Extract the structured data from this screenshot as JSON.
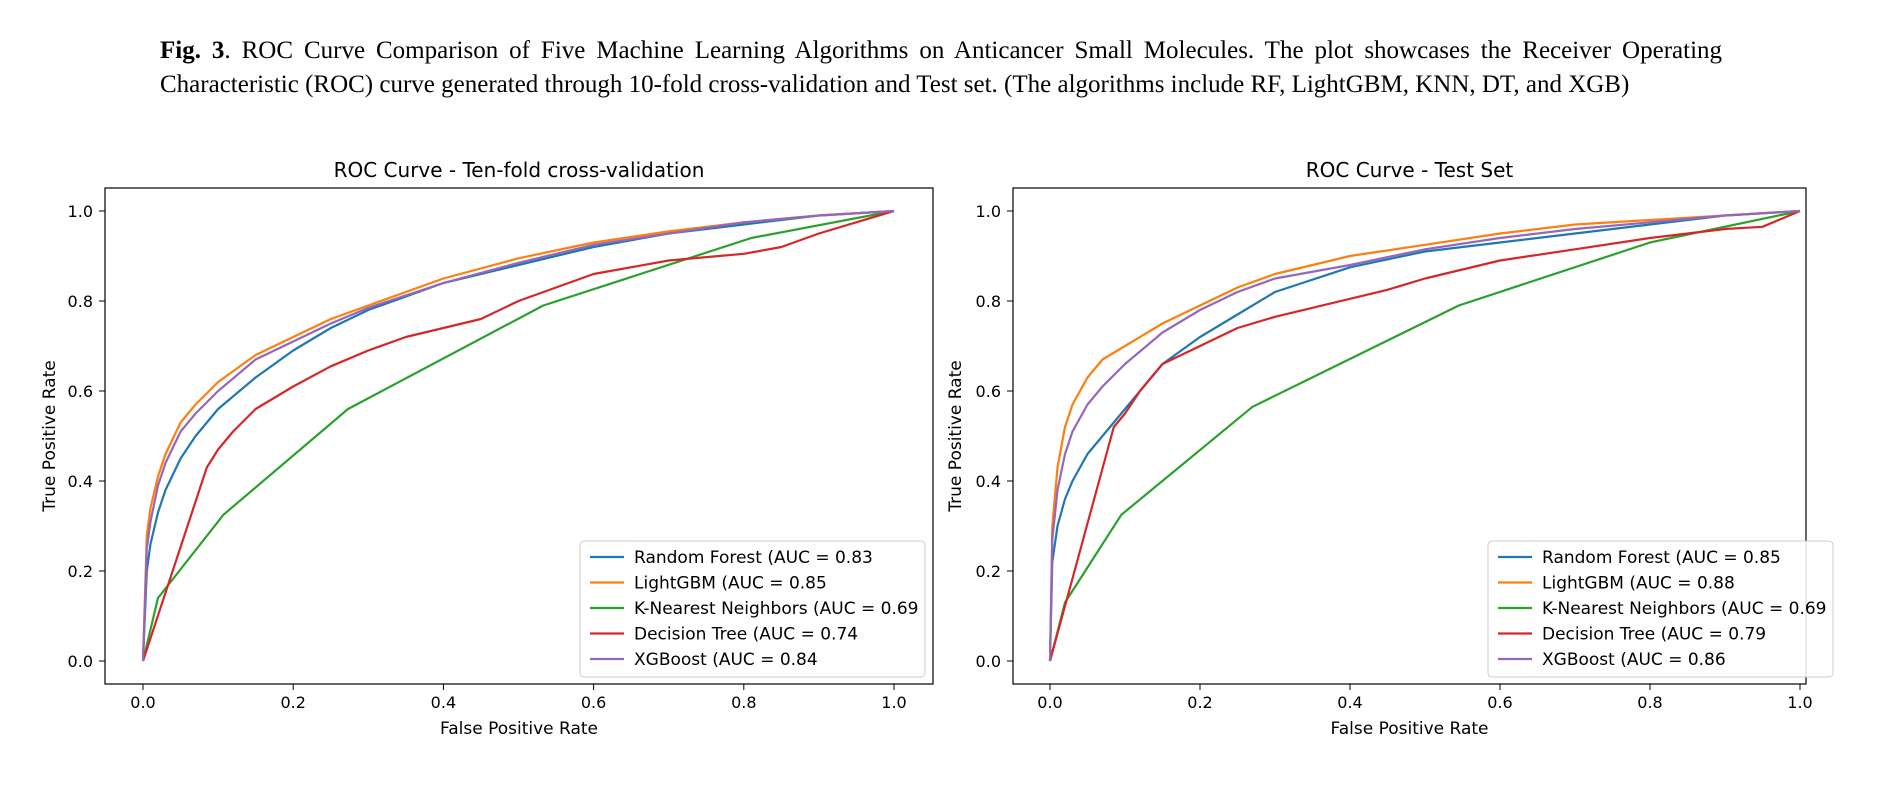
{
  "caption": {
    "label": "Fig. 3",
    "text": ". ROC Curve Comparison of Five Machine Learning Algorithms on Anticancer Small Molecules. The plot showcases the Receiver Operating Characteristic (ROC) curve generated through 10-fold cross-validation and Test set. (The algorithms include RF, LightGBM, KNN, DT, and XGB)"
  },
  "chart_data": [
    {
      "type": "line",
      "title": "ROC Curve - Ten-fold cross-validation",
      "xlabel": "False Positive Rate",
      "ylabel": "True Positive Rate",
      "xlim": [
        0,
        1
      ],
      "ylim": [
        0,
        1
      ],
      "xticks": [
        "0.0",
        "0.2",
        "0.4",
        "0.6",
        "0.8",
        "1.0"
      ],
      "yticks": [
        "0.0",
        "0.2",
        "0.4",
        "0.6",
        "0.8",
        "1.0"
      ],
      "grid": false,
      "legend_position": "lower-right",
      "series": [
        {
          "name": "Random Forest (AUC = 0.83",
          "color": "#1f77b4",
          "x": [
            0,
            0.005,
            0.01,
            0.02,
            0.03,
            0.05,
            0.07,
            0.1,
            0.15,
            0.2,
            0.25,
            0.3,
            0.4,
            0.5,
            0.6,
            0.7,
            0.8,
            0.9,
            1.0
          ],
          "y": [
            0,
            0.2,
            0.26,
            0.33,
            0.38,
            0.45,
            0.5,
            0.56,
            0.63,
            0.69,
            0.74,
            0.78,
            0.84,
            0.88,
            0.92,
            0.95,
            0.97,
            0.99,
            1.0
          ]
        },
        {
          "name": "LightGBM (AUC = 0.85",
          "color": "#ff7f0e",
          "x": [
            0,
            0.005,
            0.01,
            0.02,
            0.03,
            0.05,
            0.07,
            0.1,
            0.15,
            0.2,
            0.25,
            0.3,
            0.4,
            0.5,
            0.6,
            0.7,
            0.8,
            0.9,
            1.0
          ],
          "y": [
            0,
            0.28,
            0.34,
            0.41,
            0.46,
            0.53,
            0.57,
            0.62,
            0.68,
            0.72,
            0.76,
            0.79,
            0.85,
            0.895,
            0.93,
            0.955,
            0.975,
            0.99,
            1.0
          ]
        },
        {
          "name": "K-Nearest Neighbors (AUC = 0.69",
          "color": "#2ca02c",
          "x": [
            0,
            0.02,
            0.107,
            0.273,
            0.533,
            0.81,
            1.0
          ],
          "y": [
            0,
            0.14,
            0.325,
            0.56,
            0.79,
            0.94,
            1.0
          ]
        },
        {
          "name": "Decision Tree (AUC = 0.74",
          "color": "#d62728",
          "x": [
            0,
            0.085,
            0.1,
            0.12,
            0.15,
            0.2,
            0.25,
            0.3,
            0.35,
            0.4,
            0.45,
            0.5,
            0.55,
            0.6,
            0.7,
            0.8,
            0.85,
            0.9,
            1.0
          ],
          "y": [
            0,
            0.43,
            0.47,
            0.51,
            0.56,
            0.61,
            0.655,
            0.69,
            0.72,
            0.74,
            0.76,
            0.8,
            0.83,
            0.86,
            0.89,
            0.905,
            0.92,
            0.95,
            1.0
          ]
        },
        {
          "name": "XGBoost (AUC = 0.84",
          "color": "#9467bd",
          "x": [
            0,
            0.005,
            0.01,
            0.02,
            0.03,
            0.05,
            0.07,
            0.1,
            0.15,
            0.2,
            0.25,
            0.3,
            0.4,
            0.5,
            0.6,
            0.7,
            0.8,
            0.9,
            1.0
          ],
          "y": [
            0,
            0.25,
            0.31,
            0.39,
            0.44,
            0.51,
            0.55,
            0.6,
            0.67,
            0.71,
            0.75,
            0.785,
            0.84,
            0.885,
            0.925,
            0.95,
            0.975,
            0.99,
            1.0
          ]
        }
      ]
    },
    {
      "type": "line",
      "title": "ROC Curve - Test Set",
      "xlabel": "False Positive Rate",
      "ylabel": "True Positive Rate",
      "xlim": [
        0,
        1
      ],
      "ylim": [
        0,
        1
      ],
      "xticks": [
        "0.0",
        "0.2",
        "0.4",
        "0.6",
        "0.8",
        "1.0"
      ],
      "yticks": [
        "0.0",
        "0.2",
        "0.4",
        "0.6",
        "0.8",
        "1.0"
      ],
      "grid": false,
      "legend_position": "lower-right",
      "series": [
        {
          "name": "Random Forest (AUC = 0.85",
          "color": "#1f77b4",
          "x": [
            0,
            0.003,
            0.01,
            0.02,
            0.03,
            0.05,
            0.07,
            0.1,
            0.13,
            0.15,
            0.2,
            0.25,
            0.3,
            0.4,
            0.5,
            0.6,
            0.7,
            0.8,
            0.9,
            1.0
          ],
          "y": [
            0,
            0.22,
            0.3,
            0.36,
            0.4,
            0.46,
            0.5,
            0.56,
            0.62,
            0.66,
            0.72,
            0.77,
            0.82,
            0.875,
            0.91,
            0.93,
            0.95,
            0.97,
            0.99,
            1.0
          ]
        },
        {
          "name": "LightGBM (AUC = 0.88",
          "color": "#ff7f0e",
          "x": [
            0,
            0.003,
            0.01,
            0.02,
            0.03,
            0.05,
            0.07,
            0.1,
            0.15,
            0.2,
            0.25,
            0.3,
            0.4,
            0.5,
            0.6,
            0.7,
            0.8,
            0.9,
            1.0
          ],
          "y": [
            0,
            0.3,
            0.43,
            0.52,
            0.57,
            0.63,
            0.67,
            0.7,
            0.75,
            0.79,
            0.83,
            0.86,
            0.9,
            0.925,
            0.95,
            0.97,
            0.98,
            0.99,
            1.0
          ]
        },
        {
          "name": "K-Nearest Neighbors (AUC = 0.69",
          "color": "#2ca02c",
          "x": [
            0,
            0.02,
            0.095,
            0.27,
            0.545,
            0.8,
            1.0
          ],
          "y": [
            0,
            0.13,
            0.325,
            0.565,
            0.79,
            0.93,
            1.0
          ]
        },
        {
          "name": "Decision Tree (AUC = 0.79",
          "color": "#d62728",
          "x": [
            0,
            0.085,
            0.1,
            0.12,
            0.14,
            0.15,
            0.2,
            0.25,
            0.3,
            0.35,
            0.4,
            0.45,
            0.5,
            0.55,
            0.6,
            0.7,
            0.8,
            0.9,
            0.95,
            1.0
          ],
          "y": [
            0,
            0.52,
            0.55,
            0.6,
            0.64,
            0.66,
            0.7,
            0.74,
            0.765,
            0.785,
            0.805,
            0.825,
            0.85,
            0.87,
            0.89,
            0.915,
            0.94,
            0.96,
            0.965,
            1.0
          ]
        },
        {
          "name": "XGBoost (AUC = 0.86",
          "color": "#9467bd",
          "x": [
            0,
            0.003,
            0.01,
            0.02,
            0.03,
            0.05,
            0.07,
            0.1,
            0.15,
            0.2,
            0.25,
            0.3,
            0.4,
            0.5,
            0.6,
            0.7,
            0.8,
            0.9,
            1.0
          ],
          "y": [
            0,
            0.27,
            0.38,
            0.46,
            0.51,
            0.57,
            0.61,
            0.66,
            0.73,
            0.78,
            0.82,
            0.85,
            0.88,
            0.915,
            0.94,
            0.96,
            0.975,
            0.99,
            1.0
          ]
        }
      ]
    }
  ]
}
